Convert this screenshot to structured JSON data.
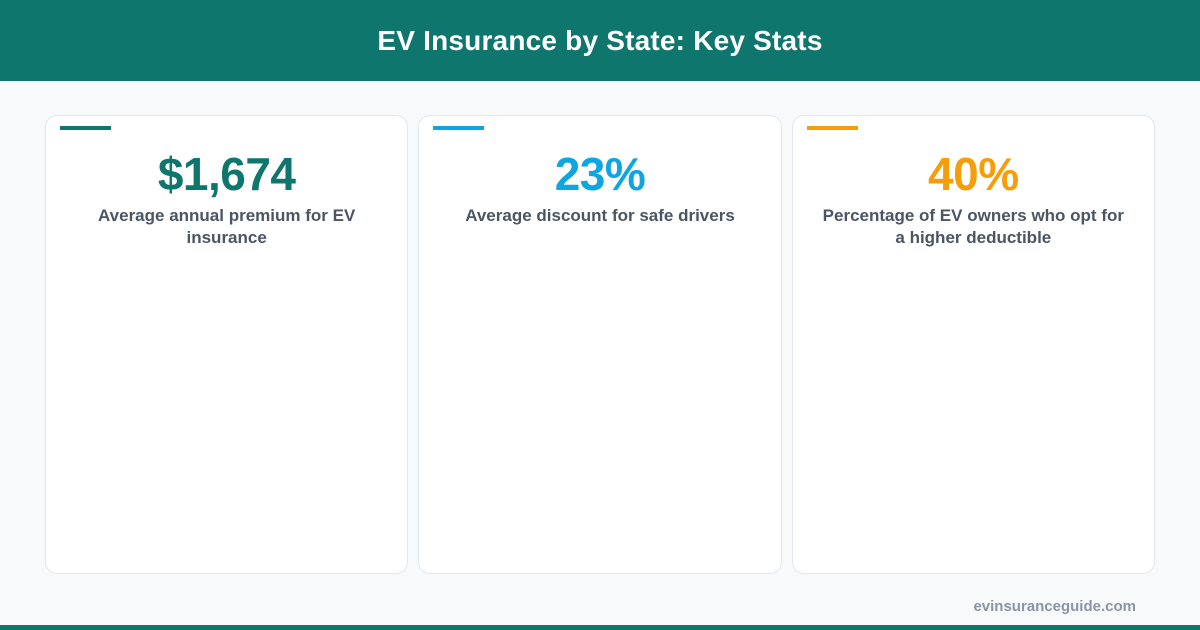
{
  "header": {
    "title": "EV Insurance by State: Key Stats"
  },
  "colors": {
    "brand": "#0f766e",
    "card_1_accent": "#0f766e",
    "card_2_accent": "#0ea5e0",
    "card_3_accent": "#f59e0b"
  },
  "cards": [
    {
      "value": "$1,674",
      "description": "Average annual premium for EV insurance"
    },
    {
      "value": "23%",
      "description": "Average discount for safe drivers"
    },
    {
      "value": "40%",
      "description": "Percentage of EV owners who opt for a higher deductible"
    }
  ],
  "footer": {
    "url": "evinsuranceguide.com"
  }
}
